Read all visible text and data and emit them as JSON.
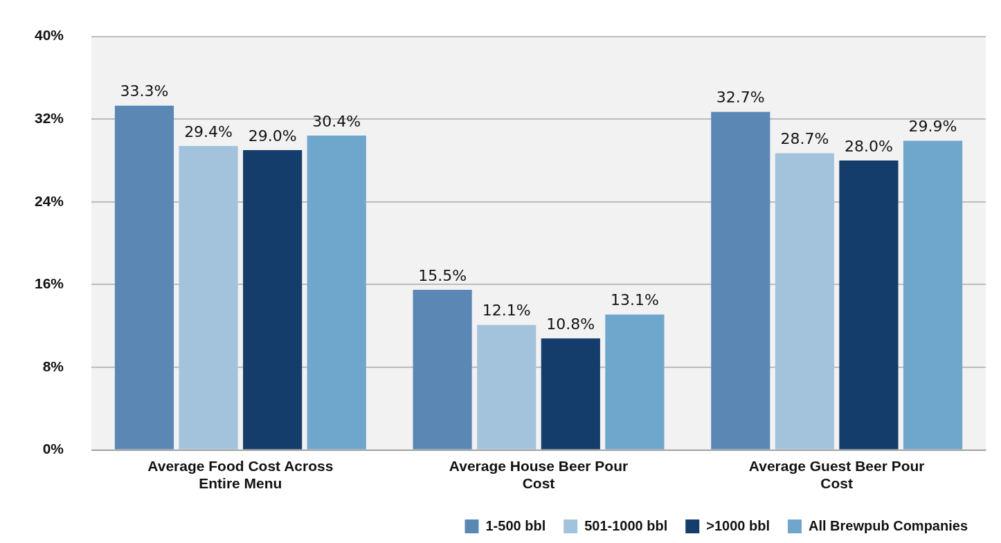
{
  "chart_data": {
    "type": "bar",
    "categories": [
      "Average Food Cost Across Entire Menu",
      "Average House Beer Pour Cost",
      "Average Guest Beer Pour Cost"
    ],
    "series": [
      {
        "name": "1-500 bbl",
        "color": "#5b87b5",
        "values": [
          33.3,
          15.5,
          32.7
        ],
        "value_labels": [
          "33.3%",
          "15.5%",
          "32.7%"
        ]
      },
      {
        "name": "501-1000 bbl",
        "color": "#a3c3dc",
        "values": [
          29.4,
          12.1,
          28.7
        ],
        "value_labels": [
          "29.4%",
          "12.1%",
          "28.7%"
        ]
      },
      {
        "name": ">1000 bbl",
        "color": "#143d6b",
        "values": [
          29.0,
          10.8,
          28.0
        ],
        "value_labels": [
          "29.0%",
          "10.8%",
          "28.0%"
        ]
      },
      {
        "name": "All Brewpub Companies",
        "color": "#6fa6cc",
        "values": [
          30.4,
          13.1,
          29.9
        ],
        "value_labels": [
          "30.4%",
          "13.1%",
          "29.9%"
        ]
      }
    ],
    "ylim": [
      0,
      40
    ],
    "yticks": [
      {
        "value": 0,
        "label": "0%"
      },
      {
        "value": 8,
        "label": "8%"
      },
      {
        "value": 16,
        "label": "16%"
      },
      {
        "value": 24,
        "label": "24%"
      },
      {
        "value": 32,
        "label": "32%"
      },
      {
        "value": 40,
        "label": "40%"
      }
    ],
    "grid": "y",
    "legend": "bottom right"
  }
}
